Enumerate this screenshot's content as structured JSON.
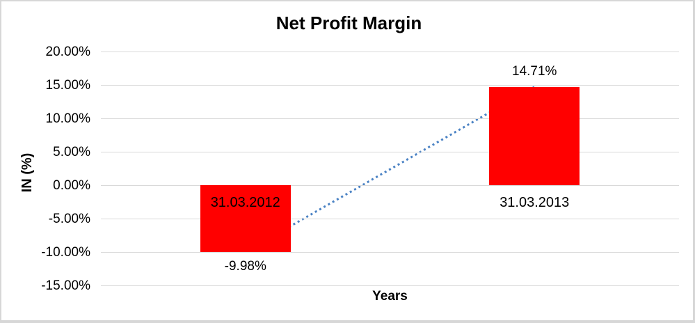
{
  "frame": {
    "background": "#ffffff",
    "border_color": "#d7d7d7"
  },
  "chart_data": {
    "type": "bar",
    "title": "Net Profit Margin",
    "xlabel": "Years",
    "ylabel": "IN (%)",
    "categories": [
      "31.03.2012",
      "31.03.2013"
    ],
    "values": [
      -9.98,
      14.71
    ],
    "data_labels": [
      "-9.98%",
      "14.71%"
    ],
    "yticks": {
      "values": [
        20,
        15,
        10,
        5,
        0,
        -5,
        -10,
        -15
      ],
      "labels": [
        "20.00%",
        "15.00%",
        "10.00%",
        "5.00%",
        "0.00%",
        "-5.00%",
        "-10.00%",
        "-15.00%"
      ]
    },
    "ylim": [
      -15,
      20
    ],
    "grid": true,
    "legend": "none",
    "bar_color": "#ff0000",
    "gridline_color": "#d9d9d9",
    "text_color": "#000000",
    "trendline": {
      "style": "dotted",
      "color": "#4a82c4",
      "points": [
        [
          0,
          -9.98
        ],
        [
          1,
          14.71
        ]
      ]
    }
  }
}
